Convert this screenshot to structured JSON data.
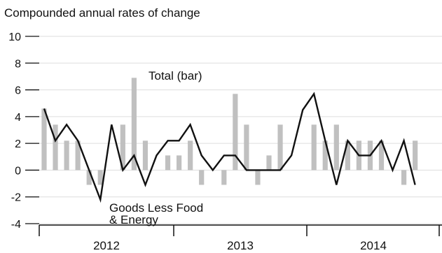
{
  "chart_data": {
    "type": "bar",
    "title": "Compounded annual rates of change",
    "ylim": [
      -4,
      10
    ],
    "yticks": [
      "10",
      "8",
      "6",
      "4",
      "2",
      "0",
      "-2",
      "-4"
    ],
    "ytick_values": [
      10,
      8,
      6,
      4,
      2,
      0,
      -2,
      -4
    ],
    "year_labels": [
      "2012",
      "2013",
      "2014"
    ],
    "grid": true,
    "colors": {
      "bar": "#c0c0c0",
      "line": "#111111",
      "grid": "#dddddd"
    },
    "series": [
      {
        "name": "Total (bar)",
        "kind": "bar",
        "values": [
          4.6,
          3.4,
          2.2,
          2.2,
          -1.1,
          -1.1,
          0,
          3.4,
          6.9,
          2.2,
          0,
          1.1,
          1.1,
          2.2,
          -1.1,
          0,
          -1.1,
          5.7,
          3.4,
          -1.1,
          1.1,
          3.4,
          0,
          0,
          3.4,
          2.2,
          3.4,
          2.2,
          2.2,
          2.2,
          2.2,
          0,
          -1.1,
          2.2,
          null
        ]
      },
      {
        "name": "Goods Less Food & Energy",
        "label_lines": [
          "Goods Less Food",
          "& Energy"
        ],
        "kind": "line",
        "values": [
          4.6,
          2.2,
          3.4,
          2.2,
          0,
          -2.2,
          3.4,
          0,
          1.1,
          -1.1,
          1.1,
          2.2,
          2.2,
          3.4,
          1.1,
          0,
          1.1,
          1.1,
          0,
          0,
          0,
          0,
          1.1,
          4.5,
          5.7,
          2.2,
          -1.1,
          2.2,
          1.1,
          1.1,
          2.2,
          0,
          2.2,
          -1.1,
          null
        ]
      }
    ]
  }
}
